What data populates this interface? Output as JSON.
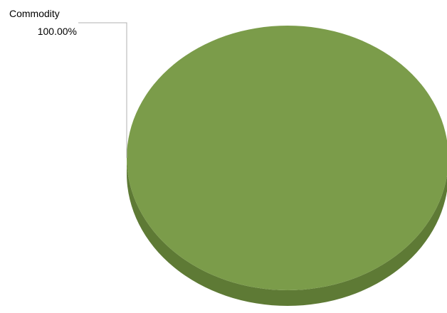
{
  "chart_data": {
    "type": "pie",
    "style": "3d",
    "categories": [
      "Commodity"
    ],
    "values": [
      100
    ],
    "data_labels": [
      {
        "category": "Commodity",
        "percent": "100.00%"
      }
    ],
    "title": "",
    "legend": "none",
    "colors": {
      "slice_top": "#7b9c4a",
      "slice_side": "#5e7a35",
      "leader_line": "#b0b0b0"
    }
  }
}
